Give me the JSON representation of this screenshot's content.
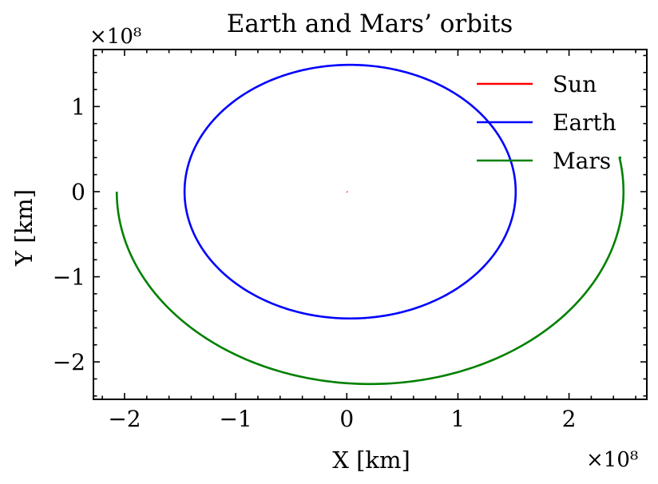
{
  "chart_data": {
    "type": "line",
    "title": "Earth and Mars’ orbits",
    "xlabel": "X [km]",
    "ylabel": "Y [km]",
    "x_offset_label": "×10⁸",
    "y_offset_label": "×10⁸",
    "scale": 100000000,
    "xlim": [
      -2.28,
      2.7
    ],
    "ylim": [
      -2.44,
      1.67
    ],
    "x_ticks": [
      -2,
      -1,
      0,
      1,
      2
    ],
    "y_ticks": [
      -2,
      -1,
      0,
      1
    ],
    "x_tick_labels": [
      "−2",
      "−1",
      "0",
      "1",
      "2"
    ],
    "y_tick_labels": [
      "−2",
      "−1",
      "0",
      "1"
    ],
    "grid": false,
    "legend_position": "top-right",
    "series": [
      {
        "name": "Sun",
        "color": "#ff0000",
        "shape": "point",
        "x": [
          0.0,
          0.005
        ],
        "y": [
          0.0,
          -0.005
        ]
      },
      {
        "name": "Earth",
        "color": "#0000ff",
        "shape": "closed-ellipse",
        "start_x": 1.52,
        "start_y": 0.0,
        "center_x": 0.03,
        "center_y": 0.0,
        "semi_major_x": 1.49,
        "semi_minor_y": 1.49
      },
      {
        "name": "Mars",
        "color": "#008000",
        "shape": "open-arc",
        "start_x": -2.07,
        "start_y": 0.0,
        "end_x": 2.47,
        "end_y": 0.4,
        "center_x": 0.21,
        "center_y": 0.0,
        "semi_major_x": 2.28,
        "semi_minor_y": 2.26
      }
    ]
  }
}
